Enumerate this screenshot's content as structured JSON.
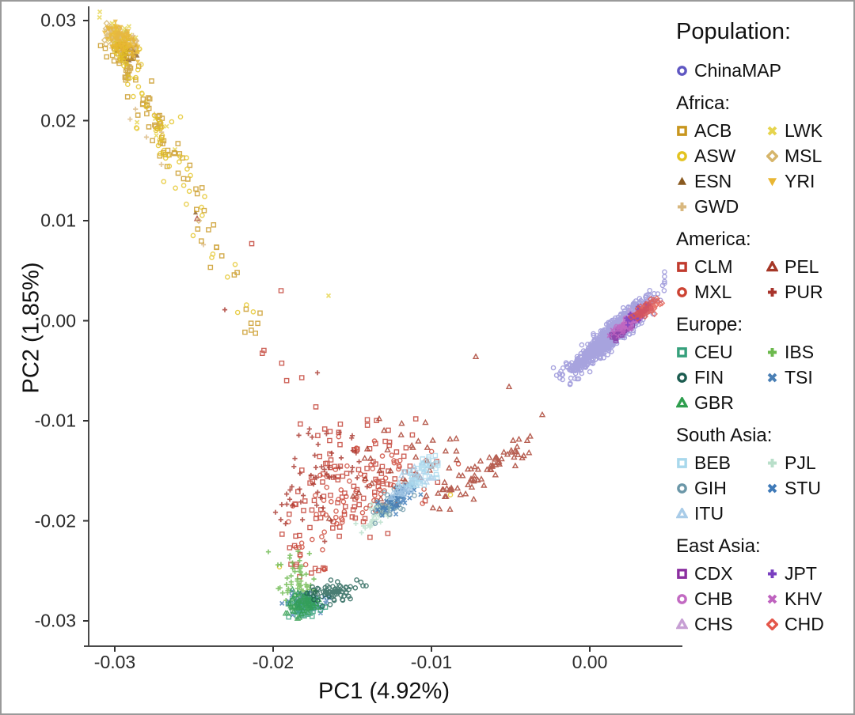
{
  "chart_data": {
    "type": "scatter",
    "title": "",
    "xlabel": "PC1 (4.92%)",
    "ylabel": "PC2 (1.85%)",
    "xlim": [
      -0.0317,
      0.0058
    ],
    "ylim": [
      -0.0325,
      0.0314
    ],
    "grid": false,
    "legend_position": "right",
    "x_ticks": [
      -0.03,
      -0.02,
      -0.01,
      0.0
    ],
    "x_tick_labels": [
      "-0.03",
      "-0.02",
      "-0.01",
      "0.00"
    ],
    "y_ticks": [
      0.03,
      0.02,
      0.01,
      0.0,
      -0.01,
      -0.02,
      -0.03
    ],
    "y_tick_labels": [
      "0.03",
      "0.02",
      "0.01",
      "0.00",
      "-0.01",
      "-0.02",
      "-0.03"
    ],
    "draw_order": [
      "CLM",
      "MXL",
      "PUR",
      "PEL",
      "ESN",
      "MSL",
      "LWK",
      "GWD",
      "ACB",
      "ASW",
      "YRI",
      "IBS",
      "TSI",
      "CEU",
      "GBR",
      "FIN",
      "PJL",
      "GIH",
      "STU",
      "ITU",
      "BEB",
      "ChinaMAP",
      "CHS",
      "CDX",
      "KHV",
      "CHB",
      "JPT",
      "CHD"
    ],
    "populations": {
      "ChinaMAP": {
        "group": "",
        "color": "#5f57c2",
        "shape": "open-circle",
        "clusters": [
          {
            "type": "gauss",
            "center": [
              0.0015,
              -0.0013
            ],
            "sigma": [
              0.00115,
              0.0017
            ],
            "rho": 0.93,
            "n": 950
          },
          {
            "type": "gauss",
            "center": [
              -0.0011,
              -0.0043
            ],
            "sigma": [
              0.00045,
              0.00065
            ],
            "rho": 0.8,
            "n": 16
          },
          {
            "type": "points",
            "pts": [
              [
                -0.0019,
                -0.0053
              ],
              [
                -0.0007,
                -0.0058
              ],
              [
                -0.0023,
                -0.0047
              ]
            ]
          }
        ]
      },
      "ACB": {
        "group": "Africa",
        "color": "#c8961e",
        "shape": "open-square",
        "clusters": [
          {
            "type": "gauss",
            "center": [
              -0.0295,
              0.0262
            ],
            "sigma": [
              0.0005,
              0.0009
            ],
            "rho": -0.5,
            "n": 40
          },
          {
            "type": "line",
            "from": [
              -0.0292,
              0.025
            ],
            "to": [
              -0.0258,
              0.0148
            ],
            "jitter": 0.0006,
            "n": 45
          },
          {
            "type": "line",
            "from": [
              -0.0258,
              0.0145
            ],
            "to": [
              -0.0222,
              0.0035
            ],
            "jitter": 0.0007,
            "n": 16
          },
          {
            "type": "line",
            "from": [
              -0.022,
              0.003
            ],
            "to": [
              -0.0196,
              -0.0045
            ],
            "jitter": 0.0008,
            "n": 7
          }
        ]
      },
      "LWK": {
        "group": "Africa",
        "color": "#e6d44e",
        "shape": "x",
        "clusters": [
          {
            "type": "gauss",
            "center": [
              -0.0297,
              0.0285
            ],
            "sigma": [
              0.0005,
              0.0008
            ],
            "rho": -0.5,
            "n": 55
          },
          {
            "type": "line",
            "from": [
              -0.0291,
              0.0246
            ],
            "to": [
              -0.0262,
              0.016
            ],
            "jitter": 0.0006,
            "n": 8
          },
          {
            "type": "points",
            "pts": [
              [
                -0.0165,
                0.0025
              ]
            ]
          }
        ]
      },
      "ASW": {
        "group": "Africa",
        "color": "#e3c320",
        "shape": "open-circle",
        "clusters": [
          {
            "type": "gauss",
            "center": [
              -0.0294,
              0.0268
            ],
            "sigma": [
              0.0005,
              0.0008
            ],
            "rho": -0.5,
            "n": 30
          },
          {
            "type": "line",
            "from": [
              -0.029,
              0.0244
            ],
            "to": [
              -0.0252,
              0.0128
            ],
            "jitter": 0.0007,
            "n": 38
          },
          {
            "type": "line",
            "from": [
              -0.0252,
              0.0125
            ],
            "to": [
              -0.0208,
              -0.001
            ],
            "jitter": 0.0009,
            "n": 12
          },
          {
            "type": "points",
            "pts": [
              [
                -0.0088,
                -0.0174
              ],
              [
                -0.0196,
                -0.0246
              ]
            ]
          }
        ]
      },
      "MSL": {
        "group": "Africa",
        "color": "#d6b56a",
        "shape": "open-diamond",
        "clusters": [
          {
            "type": "gauss",
            "center": [
              -0.0298,
              0.0279
            ],
            "sigma": [
              0.00042,
              0.0007
            ],
            "rho": -0.5,
            "n": 42
          },
          {
            "type": "points",
            "pts": [
              [
                -0.0247,
                0.01
              ]
            ]
          }
        ]
      },
      "ESN": {
        "group": "Africa",
        "color": "#8a5a20",
        "shape": "filled-triangle",
        "clusters": [
          {
            "type": "gauss",
            "center": [
              -0.0293,
              0.0275
            ],
            "sigma": [
              0.00042,
              0.0007
            ],
            "rho": -0.5,
            "n": 45
          },
          {
            "type": "points",
            "pts": [
              [
                -0.0249,
                0.0108
              ]
            ]
          }
        ]
      },
      "YRI": {
        "group": "Africa",
        "color": "#e9b633",
        "shape": "filled-triangle-down",
        "clusters": [
          {
            "type": "gauss",
            "center": [
              -0.0295,
              0.028
            ],
            "sigma": [
              0.00048,
              0.0008
            ],
            "rho": -0.5,
            "n": 85
          }
        ]
      },
      "GWD": {
        "group": "Africa",
        "color": "#d9b87f",
        "shape": "plus",
        "clusters": [
          {
            "type": "gauss",
            "center": [
              -0.0296,
              0.0282
            ],
            "sigma": [
              0.00045,
              0.00075
            ],
            "rho": -0.5,
            "n": 50
          },
          {
            "type": "line",
            "from": [
              -0.029,
              0.024
            ],
            "to": [
              -0.026,
              0.015
            ],
            "jitter": 0.0007,
            "n": 6
          },
          {
            "type": "points",
            "pts": [
              [
                -0.0244,
                0.0076
              ]
            ]
          }
        ]
      },
      "CLM": {
        "group": "America",
        "color": "#c13b2e",
        "shape": "open-square",
        "clusters": [
          {
            "type": "gauss",
            "center": [
              -0.0152,
              -0.0162
            ],
            "sigma": [
              0.0023,
              0.003
            ],
            "rho": 0.35,
            "n": 105
          },
          {
            "type": "line",
            "from": [
              -0.0205,
              -0.003
            ],
            "to": [
              -0.016,
              -0.01
            ],
            "jitter": 0.0012,
            "n": 10
          },
          {
            "type": "line",
            "from": [
              -0.0186,
              -0.0205
            ],
            "to": [
              -0.0177,
              -0.0258
            ],
            "jitter": 0.0008,
            "n": 12
          },
          {
            "type": "points",
            "pts": [
              [
                -0.02135,
                0.0077
              ],
              [
                -0.0195,
                0.003
              ]
            ]
          }
        ]
      },
      "PEL": {
        "group": "America",
        "color": "#a53727",
        "shape": "open-triangle",
        "clusters": [
          {
            "type": "line",
            "from": [
              -0.01,
              -0.0186
            ],
            "to": [
              -0.0041,
              -0.0124
            ],
            "jitter": 0.00055,
            "n": 70
          },
          {
            "type": "gauss",
            "center": [
              -0.0122,
              -0.015
            ],
            "sigma": [
              0.002,
              0.0024
            ],
            "rho": 0.45,
            "n": 40
          },
          {
            "type": "points",
            "pts": [
              [
                -0.003,
                -0.0094
              ],
              [
                -0.0051,
                -0.0066
              ],
              [
                -0.0072,
                -0.0036
              ],
              [
                -0.0248,
                0.0102
              ]
            ]
          }
        ]
      },
      "MXL": {
        "group": "America",
        "color": "#cc4333",
        "shape": "open-circle",
        "clusters": [
          {
            "type": "gauss",
            "center": [
              -0.0139,
              -0.0166
            ],
            "sigma": [
              0.002,
              0.0026
            ],
            "rho": 0.5,
            "n": 70
          },
          {
            "type": "line",
            "from": [
              -0.0183,
              -0.021
            ],
            "to": [
              -0.0175,
              -0.0252
            ],
            "jitter": 0.0007,
            "n": 8
          }
        ]
      },
      "PUR": {
        "group": "America",
        "color": "#a8342c",
        "shape": "plus",
        "clusters": [
          {
            "type": "gauss",
            "center": [
              -0.0172,
              -0.0157
            ],
            "sigma": [
              0.0014,
              0.0031
            ],
            "rho": 0.2,
            "n": 55
          },
          {
            "type": "points",
            "pts": [
              [
                -0.02305,
                0.0011
              ],
              [
                -0.0172,
                -0.0052
              ]
            ]
          }
        ]
      },
      "CEU": {
        "group": "Europe",
        "color": "#36a07c",
        "shape": "open-square",
        "clusters": [
          {
            "type": "gauss",
            "center": [
              -0.0181,
              -0.0287
            ],
            "sigma": [
              0.0005,
              0.0005
            ],
            "rho": 0.0,
            "n": 65
          }
        ]
      },
      "IBS": {
        "group": "Europe",
        "color": "#6cb94d",
        "shape": "plus",
        "clusters": [
          {
            "type": "gauss",
            "center": [
              -0.0184,
              -0.0258
            ],
            "sigma": [
              0.00055,
              0.0012
            ],
            "rho": 0.0,
            "n": 50
          },
          {
            "type": "points",
            "pts": [
              [
                -0.0203,
                -0.0231
              ],
              [
                -0.0197,
                -0.0244
              ]
            ]
          }
        ]
      },
      "FIN": {
        "group": "Europe",
        "color": "#1c5c50",
        "shape": "open-circle",
        "clusters": [
          {
            "type": "gauss",
            "center": [
              -0.0162,
              -0.0271
            ],
            "sigma": [
              0.00075,
              0.00058
            ],
            "rho": 0.3,
            "n": 70
          }
        ]
      },
      "TSI": {
        "group": "Europe",
        "color": "#4a7fb5",
        "shape": "x",
        "clusters": [
          {
            "type": "gauss",
            "center": [
              -0.0179,
              -0.0281
            ],
            "sigma": [
              0.00055,
              0.00055
            ],
            "rho": 0.0,
            "n": 70
          }
        ]
      },
      "GBR": {
        "group": "Europe",
        "color": "#2f9e4e",
        "shape": "open-triangle",
        "clusters": [
          {
            "type": "gauss",
            "center": [
              -0.01815,
              -0.0284
            ],
            "sigma": [
              0.00055,
              0.00055
            ],
            "rho": 0.0,
            "n": 65
          }
        ]
      },
      "BEB": {
        "group": "South Asia",
        "color": "#a8d8ec",
        "shape": "open-square",
        "clusters": [
          {
            "type": "line",
            "from": [
              -0.0113,
              -0.0163
            ],
            "to": [
              -0.0097,
              -0.0139
            ],
            "jitter": 0.00048,
            "n": 52
          }
        ]
      },
      "PJL": {
        "group": "South Asia",
        "color": "#b9dfca",
        "shape": "plus",
        "clusters": [
          {
            "type": "line",
            "from": [
              -0.01425,
              -0.0208
            ],
            "to": [
              -0.0127,
              -0.0185
            ],
            "jitter": 0.00045,
            "n": 42
          }
        ]
      },
      "GIH": {
        "group": "South Asia",
        "color": "#6b97a8",
        "shape": "open-circle",
        "clusters": [
          {
            "type": "line",
            "from": [
              -0.0133,
              -0.0196
            ],
            "to": [
              -0.0116,
              -0.0168
            ],
            "jitter": 0.00042,
            "n": 52
          }
        ]
      },
      "STU": {
        "group": "South Asia",
        "color": "#3f7ab8",
        "shape": "x",
        "clusters": [
          {
            "type": "line",
            "from": [
              -0.013,
              -0.019
            ],
            "to": [
              -0.0114,
              -0.0164
            ],
            "jitter": 0.00042,
            "n": 52
          }
        ]
      },
      "ITU": {
        "group": "South Asia",
        "color": "#a9cce8",
        "shape": "open-triangle",
        "clusters": [
          {
            "type": "line",
            "from": [
              -0.0121,
              -0.0175
            ],
            "to": [
              -0.0105,
              -0.0151
            ],
            "jitter": 0.00042,
            "n": 48
          }
        ]
      },
      "CDX": {
        "group": "East Asia",
        "color": "#8b2fa0",
        "shape": "open-square",
        "clusters": [
          {
            "type": "gauss",
            "center": [
              0.002,
              -0.001
            ],
            "sigma": [
              0.0004,
              0.0005
            ],
            "rho": 0.85,
            "n": 40
          }
        ]
      },
      "JPT": {
        "group": "East Asia",
        "color": "#7a3fc0",
        "shape": "plus",
        "clusters": [
          {
            "type": "gauss",
            "center": [
              0.0031,
              0.00075
            ],
            "sigma": [
              0.0004,
              0.0005
            ],
            "rho": 0.8,
            "n": 45
          }
        ]
      },
      "CHB": {
        "group": "East Asia",
        "color": "#c26ac2",
        "shape": "open-circle",
        "clusters": [
          {
            "type": "gauss",
            "center": [
              0.00265,
              0.00012
            ],
            "sigma": [
              0.00045,
              0.00055
            ],
            "rho": 0.85,
            "n": 55
          }
        ]
      },
      "KHV": {
        "group": "East Asia",
        "color": "#bf63bf",
        "shape": "x",
        "clusters": [
          {
            "type": "gauss",
            "center": [
              0.0023,
              -0.0005
            ],
            "sigma": [
              0.0004,
              0.0005
            ],
            "rho": 0.85,
            "n": 45
          }
        ]
      },
      "CHS": {
        "group": "East Asia",
        "color": "#c79fd4",
        "shape": "open-triangle",
        "clusters": [
          {
            "type": "gauss",
            "center": [
              0.0027,
              0.00035
            ],
            "sigma": [
              0.00045,
              0.0006
            ],
            "rho": 0.85,
            "n": 55
          }
        ]
      },
      "CHD": {
        "group": "East Asia",
        "color": "#e4564a",
        "shape": "open-diamond",
        "clusters": [
          {
            "type": "gauss",
            "center": [
              0.00365,
              0.00125
            ],
            "sigma": [
              0.0004,
              0.00046
            ],
            "rho": 0.7,
            "n": 70
          }
        ]
      }
    }
  },
  "legend": {
    "title": "Population:",
    "standalone": [
      "ChinaMAP"
    ],
    "groups": [
      {
        "label": "Africa:",
        "items": [
          "ACB",
          "LWK",
          "ASW",
          "MSL",
          "ESN",
          "YRI",
          "GWD"
        ]
      },
      {
        "label": "America:",
        "items": [
          "CLM",
          "PEL",
          "MXL",
          "PUR"
        ]
      },
      {
        "label": "Europe:",
        "items": [
          "CEU",
          "IBS",
          "FIN",
          "TSI",
          "GBR"
        ]
      },
      {
        "label": "South Asia:",
        "items": [
          "BEB",
          "PJL",
          "GIH",
          "STU",
          "ITU"
        ]
      },
      {
        "label": "East Asia:",
        "items": [
          "CDX",
          "JPT",
          "CHB",
          "KHV",
          "CHS",
          "CHD"
        ]
      }
    ]
  },
  "axis_color": "#4a4a4a",
  "tick_color": "#333333"
}
